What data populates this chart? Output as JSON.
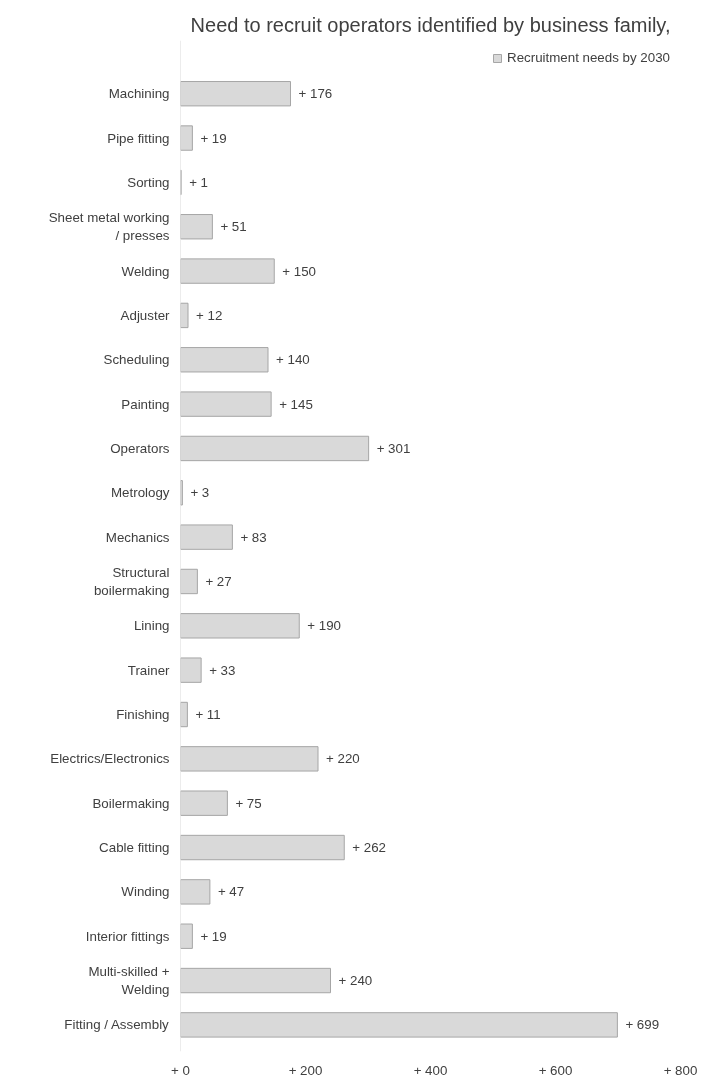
{
  "chart_data": {
    "type": "bar",
    "orientation": "horizontal",
    "title": "Need to recruit operators identified by business family,",
    "categories": [
      "Machining",
      "Pipe fitting",
      "Sorting",
      "Sheet metal working / presses",
      "Welding",
      "Adjuster",
      "Scheduling",
      "Painting",
      "Operators",
      "Metrology",
      "Mechanics",
      "Structural boilermaking",
      "Lining",
      "Trainer",
      "Finishing",
      "Electrics/Electronics",
      "Boilermaking",
      "Cable fitting",
      "Winding",
      "Interior fittings",
      "Multi-skilled + Welding",
      "Fitting / Assembly"
    ],
    "series": [
      {
        "name": "Recruitment needs by 2030",
        "color": "#d9d9d9",
        "values": [
          176,
          19,
          1,
          51,
          150,
          12,
          140,
          145,
          301,
          3,
          83,
          27,
          190,
          33,
          11,
          220,
          75,
          262,
          47,
          19,
          240,
          699
        ],
        "value_labels": [
          "+ 176",
          "+ 19",
          "+ 1",
          "+ 51",
          "+ 150",
          "+ 12",
          "+ 140",
          "+ 145",
          "+ 301",
          "+ 3",
          "+ 83",
          "+ 27",
          "+ 190",
          "+ 33",
          "+ 11",
          "+ 220",
          "+ 75",
          "+ 262",
          "+ 47",
          "+ 19",
          "+ 240",
          "+ 699"
        ]
      }
    ],
    "xlim": [
      0,
      800
    ],
    "xticks": [
      {
        "value": 0,
        "label": "+ 0"
      },
      {
        "value": 200,
        "label": "+ 200"
      },
      {
        "value": 400,
        "label": "+ 400"
      },
      {
        "value": 600,
        "label": "+ 600"
      },
      {
        "value": 800,
        "label": "+ 800"
      }
    ],
    "legend": "top right",
    "grid": false
  }
}
